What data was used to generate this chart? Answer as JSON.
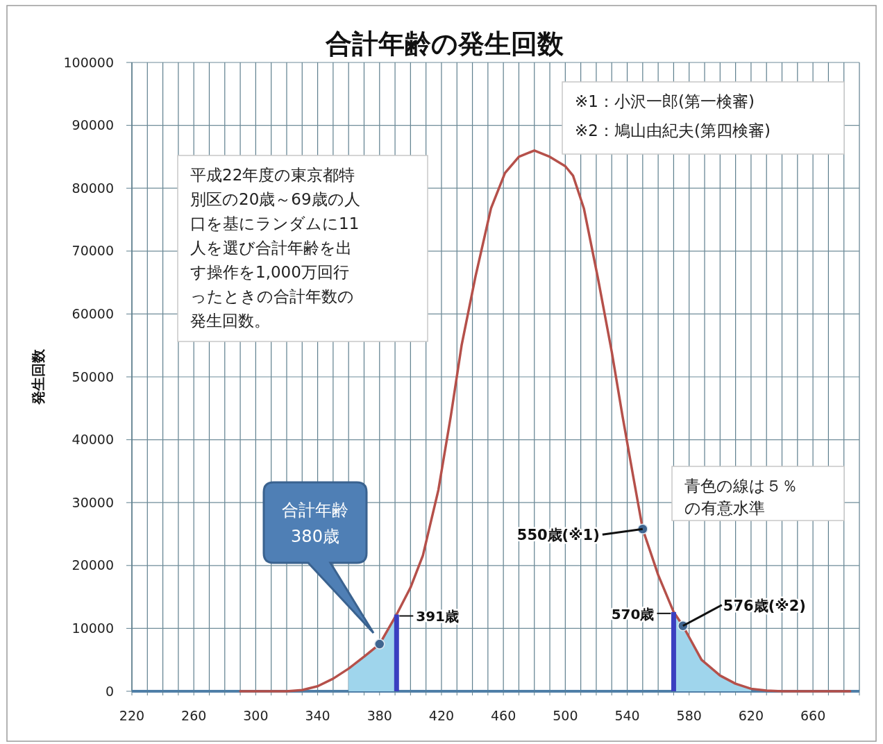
{
  "chart_data": {
    "type": "line",
    "title": "合計年齢の発生回数",
    "ylabel": "発生回数",
    "xlim": [
      220,
      690
    ],
    "ylim": [
      0,
      100000
    ],
    "xticks": [
      220,
      {
        "value": 230,
        "label": null
      },
      {
        "value": 240,
        "label": null
      },
      {
        "value": 250,
        "label": null
      },
      260,
      {
        "value": 270,
        "label": null
      },
      {
        "value": 280,
        "label": null
      },
      {
        "value": 290,
        "label": null
      },
      300,
      {
        "value": 310,
        "label": null
      },
      {
        "value": 320,
        "label": null
      },
      {
        "value": 330,
        "label": null
      },
      340,
      {
        "value": 350,
        "label": null
      },
      {
        "value": 360,
        "label": null
      },
      {
        "value": 370,
        "label": null
      },
      380,
      {
        "value": 390,
        "label": null
      },
      {
        "value": 400,
        "label": null
      },
      {
        "value": 410,
        "label": null
      },
      420,
      {
        "value": 430,
        "label": null
      },
      {
        "value": 440,
        "label": null
      },
      {
        "value": 450,
        "label": null
      },
      460,
      {
        "value": 470,
        "label": null
      },
      {
        "value": 480,
        "label": null
      },
      {
        "value": 490,
        "label": null
      },
      500,
      {
        "value": 510,
        "label": null
      },
      {
        "value": 520,
        "label": null
      },
      {
        "value": 530,
        "label": null
      },
      540,
      {
        "value": 550,
        "label": null
      },
      {
        "value": 560,
        "label": null
      },
      {
        "value": 570,
        "label": null
      },
      580,
      {
        "value": 590,
        "label": null
      },
      {
        "value": 600,
        "label": null
      },
      {
        "value": 610,
        "label": null
      },
      620,
      {
        "value": 630,
        "label": null
      },
      {
        "value": 640,
        "label": null
      },
      {
        "value": 650,
        "label": null
      },
      660,
      {
        "value": 670,
        "label": null
      },
      {
        "value": 680,
        "label": null
      },
      {
        "value": 690,
        "label": null
      }
    ],
    "yticks": [
      0,
      10000,
      20000,
      30000,
      40000,
      50000,
      60000,
      70000,
      80000,
      90000,
      100000
    ],
    "grid": true,
    "marker": "none",
    "series": [
      {
        "type": "area",
        "color": "#9fd5ec",
        "x": [
          360,
          370,
          380,
          391
        ],
        "values": [
          3600,
          5500,
          7500,
          12200
        ]
      },
      {
        "type": "area",
        "color": "#9fd5ec",
        "x": [
          570,
          576,
          588,
          600,
          610,
          620
        ],
        "values": [
          12600,
          10400,
          5000,
          2500,
          1200,
          400
        ]
      },
      {
        "color": "#b5504a",
        "x": [
          290,
          320,
          330,
          340,
          350,
          360,
          370,
          380,
          391,
          400,
          408,
          418,
          426,
          433,
          442,
          452,
          461,
          470,
          480,
          490,
          500,
          505,
          512,
          521,
          530,
          537,
          544,
          550,
          560,
          570,
          576,
          588,
          600,
          610,
          620,
          630,
          640,
          684
        ],
        "values": [
          0,
          0,
          200,
          800,
          2000,
          3600,
          5500,
          7500,
          12200,
          16500,
          21600,
          32000,
          43700,
          55000,
          66000,
          76800,
          82400,
          85000,
          86000,
          85000,
          83500,
          82000,
          76800,
          65800,
          54000,
          43700,
          34000,
          25800,
          18500,
          12600,
          10400,
          5000,
          2500,
          1200,
          400,
          100,
          0,
          0
        ]
      },
      {
        "type": "scatter",
        "color": "#3f6590",
        "marker": "circle",
        "x": [
          380,
          550,
          576
        ],
        "values": [
          7500,
          25800,
          10400
        ]
      }
    ],
    "ref_lines": [
      {
        "axis": "x",
        "value": 391,
        "label": "391歳",
        "color": "#3a3fc0"
      },
      {
        "axis": "x",
        "value": 570,
        "label": "570歳",
        "color": "#3a3fc0"
      }
    ],
    "annotations": [
      "※1：小沢一郎(第一検審)",
      "※2：鳩山由紀夫(第四検審)",
      "平成22年度の東京都特別区の20歳～69歳の人口を基にランダムに11人を選び合計年齢を出す操作を1,000万回行ったときの合計年数の発生回数。",
      "青色の線は５％の有意水準",
      "合計年齢\n380歳",
      {
        "text": "550歳(※1)",
        "x": 550,
        "y": 25800
      },
      {
        "text": "576歳(※2)",
        "x": 576,
        "y": 10400
      }
    ]
  }
}
